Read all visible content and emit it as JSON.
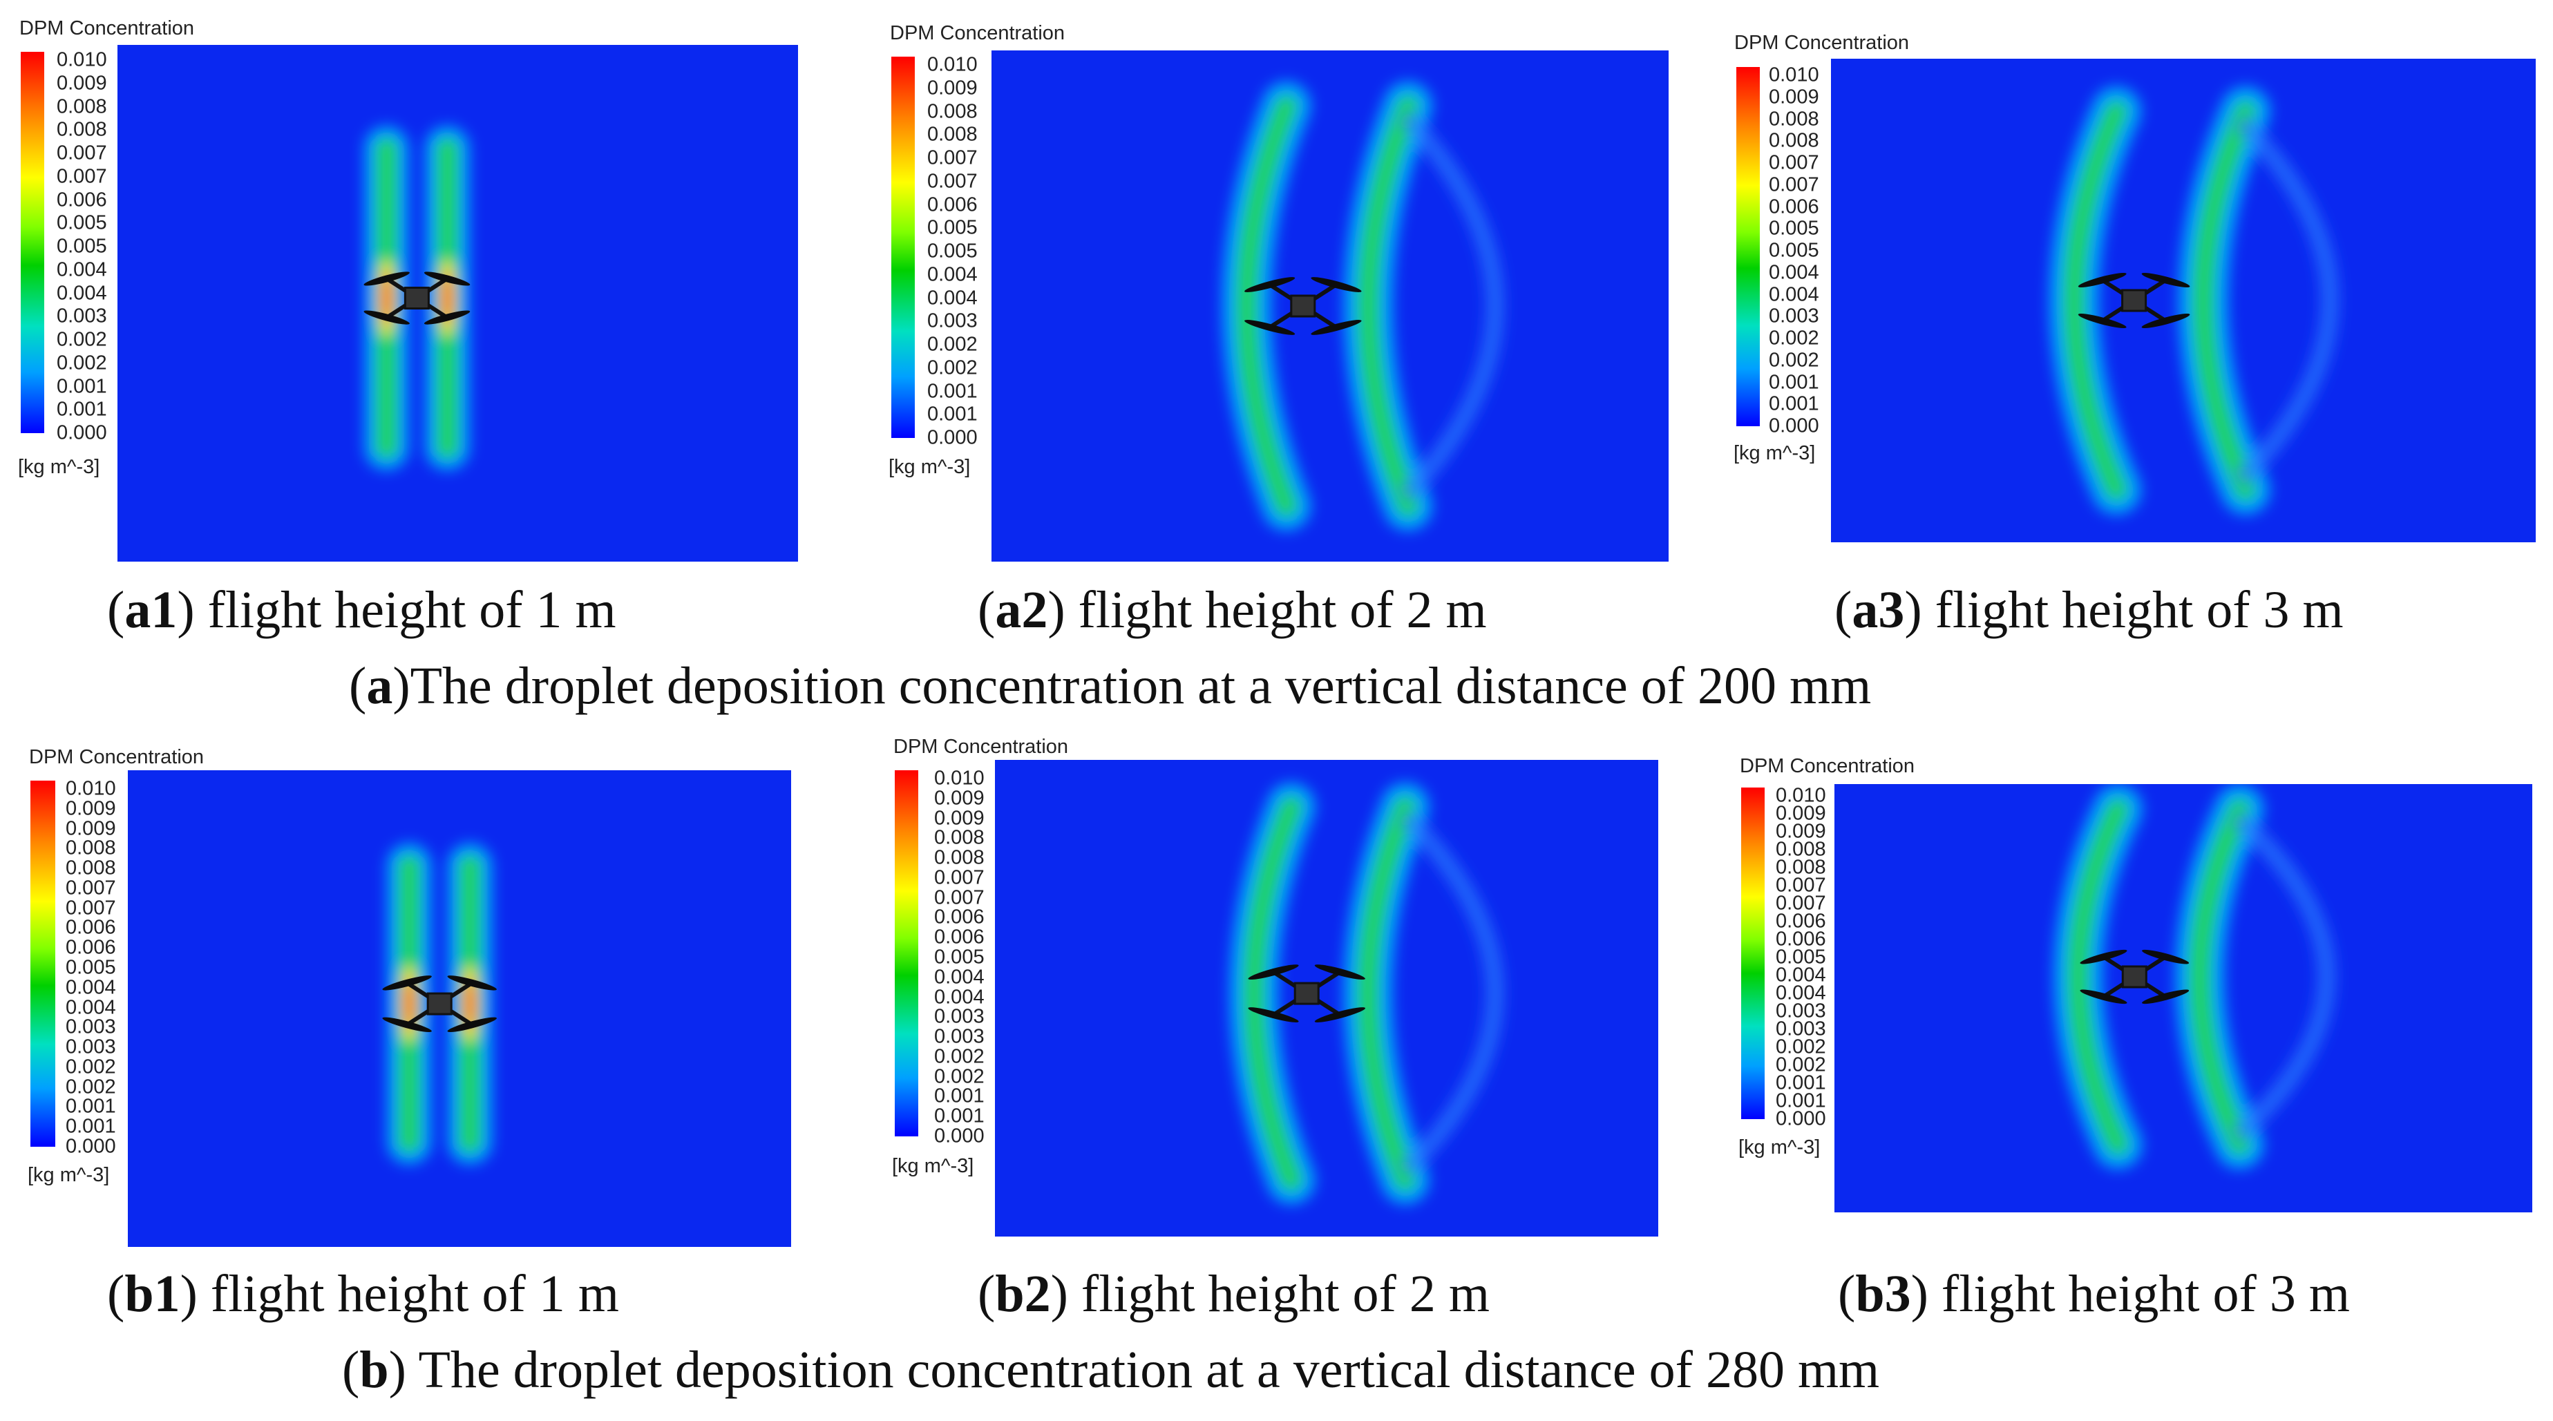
{
  "legend": {
    "title": "DPM Concentration",
    "unit": "[kg m^-3]",
    "colors": [
      "#ff0000",
      "#ff8000",
      "#ffff00",
      "#80ff00",
      "#00d000",
      "#00e0c0",
      "#00a0ff",
      "#0000ff"
    ],
    "background": "#0a28f0"
  },
  "panels": [
    {
      "id": "a1",
      "ticks": [
        "0.010",
        "0.009",
        "0.008",
        "0.008",
        "0.007",
        "0.007",
        "0.006",
        "0.005",
        "0.005",
        "0.004",
        "0.004",
        "0.003",
        "0.002",
        "0.002",
        "0.001",
        "0.001",
        "0.000"
      ],
      "caption_text": ") flight height of 1 m"
    },
    {
      "id": "a2",
      "ticks": [
        "0.010",
        "0.009",
        "0.008",
        "0.008",
        "0.007",
        "0.007",
        "0.006",
        "0.005",
        "0.005",
        "0.004",
        "0.004",
        "0.003",
        "0.002",
        "0.002",
        "0.001",
        "0.001",
        "0.000"
      ],
      "caption_text": ") flight height of 2 m"
    },
    {
      "id": "a3",
      "ticks": [
        "0.010",
        "0.009",
        "0.008",
        "0.008",
        "0.007",
        "0.007",
        "0.006",
        "0.005",
        "0.005",
        "0.004",
        "0.004",
        "0.003",
        "0.002",
        "0.002",
        "0.001",
        "0.001",
        "0.000"
      ],
      "caption_text": ") flight height of 3 m"
    },
    {
      "id": "b1",
      "ticks": [
        "0.010",
        "0.009",
        "0.009",
        "0.008",
        "0.008",
        "0.007",
        "0.007",
        "0.006",
        "0.006",
        "0.005",
        "0.004",
        "0.004",
        "0.003",
        "0.003",
        "0.002",
        "0.002",
        "0.001",
        "0.001",
        "0.000"
      ],
      "caption_text": ") flight height of 1 m"
    },
    {
      "id": "b2",
      "ticks": [
        "0.010",
        "0.009",
        "0.009",
        "0.008",
        "0.008",
        "0.007",
        "0.007",
        "0.006",
        "0.006",
        "0.005",
        "0.004",
        "0.004",
        "0.003",
        "0.003",
        "0.002",
        "0.002",
        "0.001",
        "0.001",
        "0.000"
      ],
      "caption_text": ") flight height of 2 m"
    },
    {
      "id": "b3",
      "ticks": [
        "0.010",
        "0.009",
        "0.009",
        "0.008",
        "0.008",
        "0.007",
        "0.007",
        "0.006",
        "0.006",
        "0.005",
        "0.004",
        "0.004",
        "0.003",
        "0.003",
        "0.002",
        "0.002",
        "0.001",
        "0.001",
        "0.000"
      ],
      "caption_text": ") flight height of 3 m"
    }
  ],
  "rows": [
    {
      "label": "a",
      "caption_text": ")The droplet deposition concentration at a vertical distance of 200 mm"
    },
    {
      "label": "b",
      "caption_text": ") The droplet deposition concentration at a vertical distance of 280 mm"
    }
  ]
}
